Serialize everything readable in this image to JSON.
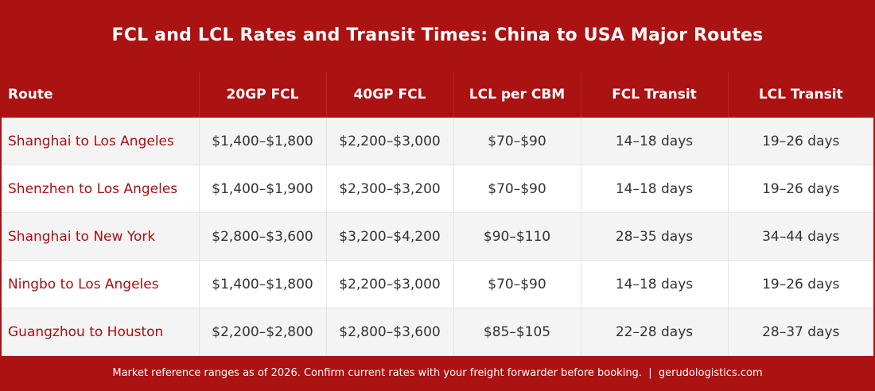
{
  "header": {
    "title": "FCL and LCL Rates and Transit Times: China to USA Major Routes"
  },
  "table": {
    "columns": [
      "Route",
      "20GP FCL",
      "40GP FCL",
      "LCL per CBM",
      "FCL Transit",
      "LCL Transit"
    ],
    "rows": [
      [
        "Shanghai to Los Angeles",
        "$1,400–$1,800",
        "$2,200–$3,000",
        "$70–$90",
        "14–18 days",
        "19–26 days"
      ],
      [
        "Shenzhen to Los Angeles",
        "$1,400–$1,900",
        "$2,300–$3,200",
        "$70–$90",
        "14–18 days",
        "19–26 days"
      ],
      [
        "Shanghai to New York",
        "$2,800–$3,600",
        "$3,200–$4,200",
        "$90–$110",
        "28–35 days",
        "34–44 days"
      ],
      [
        "Ningbo to Los Angeles",
        "$1,400–$1,800",
        "$2,200–$3,000",
        "$70–$90",
        "14–18 days",
        "19–26 days"
      ],
      [
        "Guangzhou to Houston",
        "$2,200–$2,800",
        "$2,800–$3,600",
        "$85–$105",
        "22–28 days",
        "28–37 days"
      ]
    ]
  },
  "footer": {
    "note": "Market reference ranges as of 2026. Confirm current rates with your freight forwarder before booking.  |  gerudologistics.com"
  }
}
